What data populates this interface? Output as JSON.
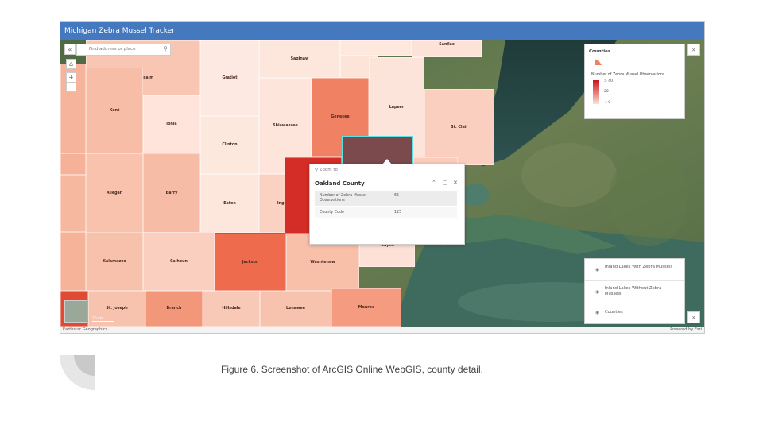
{
  "app": {
    "title": "Michigan Zebra Mussel Tracker",
    "attribution_left": "Earthstar Geographics",
    "attribution_right": "Powered by Esri"
  },
  "search": {
    "placeholder": "Find address or place"
  },
  "counties": [
    {
      "name": "",
      "fill": "#f6b49c"
    },
    {
      "name": "Montcalm",
      "fill": "#f9c6b3"
    },
    {
      "name": "Gratiot",
      "fill": "#fde9e1"
    },
    {
      "name": "Saginaw",
      "fill": "#fde7dd"
    },
    {
      "name": "",
      "fill": "#fee7dc"
    },
    {
      "name": "Sanilac",
      "fill": "#fde2d7"
    },
    {
      "name": "",
      "fill": "#fde4d8"
    },
    {
      "name": "Kent",
      "fill": "#f7bda6"
    },
    {
      "name": "Ionia",
      "fill": "#fee4da"
    },
    {
      "name": "Clinton",
      "fill": "#fde8de"
    },
    {
      "name": "Shiawassee",
      "fill": "#fee5db"
    },
    {
      "name": "Genesee",
      "fill": "#f08263"
    },
    {
      "name": "Lapeer",
      "fill": "#fde4da"
    },
    {
      "name": "St. Clair",
      "fill": "#fbcfbf"
    },
    {
      "name": "",
      "fill": "#f7b8a0"
    },
    {
      "name": "",
      "fill": "#f6b299"
    },
    {
      "name": "Allegan",
      "fill": "#f9c2ad"
    },
    {
      "name": "Barry",
      "fill": "#f7bca5"
    },
    {
      "name": "Eaton",
      "fill": "#fde6dc"
    },
    {
      "name": "Ingham",
      "fill": "#fbd2c2"
    },
    {
      "name": "",
      "fill": "#d42c26"
    },
    {
      "name": "",
      "fill": "#fbccba"
    },
    {
      "name": "",
      "fill": "#f6b39a"
    },
    {
      "name": "Kalamazoo",
      "fill": "#f8c1ab"
    },
    {
      "name": "Calhoun",
      "fill": "#fbcfbf"
    },
    {
      "name": "Jackson",
      "fill": "#ef6b4d"
    },
    {
      "name": "Washtenaw",
      "fill": "#f8bfa9"
    },
    {
      "name": "Wayne",
      "fill": "#fde1d6"
    },
    {
      "name": "",
      "fill": "#e04a35"
    },
    {
      "name": "St. Joseph",
      "fill": "#f8c3ae"
    },
    {
      "name": "Branch",
      "fill": "#f3977a"
    },
    {
      "name": "Hillsdale",
      "fill": "#f9c9b7"
    },
    {
      "name": "Lenawee",
      "fill": "#f8c3ae"
    },
    {
      "name": "Monroe",
      "fill": "#f49b80"
    }
  ],
  "selected_county": {
    "name": "Oakland",
    "fill": "#7a4a4d",
    "outline": "#5ee0e6"
  },
  "legend": {
    "title": "Counties",
    "subtitle": "Number of Zebra Mussel Observations",
    "ramp_high": "#c8161d",
    "ramp_low": "#fde0d6",
    "labels": [
      "> 40",
      "20",
      "< 0"
    ]
  },
  "popup": {
    "zoom_label": "Zoom to",
    "title": "Oakland County",
    "rows": [
      {
        "field": "Number of Zebra Mussel Observations",
        "value": "65"
      },
      {
        "field": "County Code",
        "value": "125"
      }
    ]
  },
  "layers": [
    {
      "label": "Inland Lakes With Zebra Mussels"
    },
    {
      "label": "Inland Lakes Without Zebra Mussels"
    },
    {
      "label": "Counties"
    }
  ],
  "scalebar": {
    "label": "20 km"
  },
  "caption": "Figure 6. Screenshot of ArcGIS Online WebGIS, county detail."
}
